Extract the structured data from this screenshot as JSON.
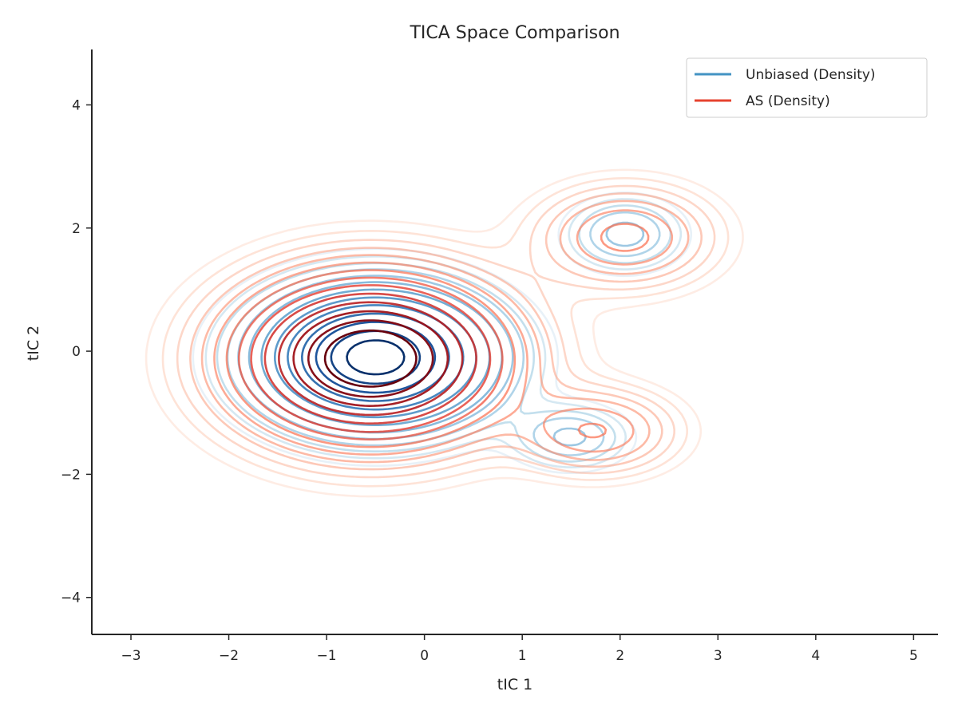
{
  "chart_data": {
    "type": "contour",
    "title": "TICA Space Comparison",
    "xlabel": "tIC 1",
    "ylabel": "tIC 2",
    "xlim": [
      -3.4,
      5.25
    ],
    "ylim": [
      -4.6,
      4.9
    ],
    "xticks": [
      -3,
      -2,
      -1,
      0,
      1,
      2,
      3,
      4,
      5
    ],
    "yticks": [
      -4,
      -2,
      0,
      2,
      4
    ],
    "xtick_labels": [
      "−3",
      "−2",
      "−1",
      "0",
      "1",
      "2",
      "3",
      "4",
      "5"
    ],
    "ytick_labels": [
      "−4",
      "−2",
      "0",
      "2",
      "4"
    ],
    "grid": false,
    "legend_position": "top-right",
    "series": [
      {
        "name": "Unbiased (Density)",
        "legend_color": "#4393c3",
        "colormap": "Blues",
        "modes": [
          {
            "center": [
              -0.5,
              -0.1
            ],
            "sx": 0.72,
            "sy": 0.68,
            "weight": 1.0
          },
          {
            "center": [
              2.05,
              1.9
            ],
            "sx": 0.38,
            "sy": 0.38,
            "weight": 0.17
          },
          {
            "center": [
              1.5,
              -1.4
            ],
            "sx": 0.38,
            "sy": 0.33,
            "weight": 0.16
          }
        ],
        "levels": [
          0.035,
          0.055,
          0.08,
          0.11,
          0.15,
          0.2,
          0.27,
          0.36,
          0.46,
          0.58,
          0.7,
          0.82,
          0.92
        ]
      },
      {
        "name": "AS (Density)",
        "legend_color": "#e6432f",
        "colormap": "Reds",
        "modes": [
          {
            "center": [
              -0.55,
              -0.12
            ],
            "sx": 0.82,
            "sy": 0.8,
            "weight": 1.0
          },
          {
            "center": [
              2.05,
              1.85
            ],
            "sx": 0.55,
            "sy": 0.5,
            "weight": 0.22
          },
          {
            "center": [
              1.75,
              -1.3
            ],
            "sx": 0.5,
            "sy": 0.42,
            "weight": 0.2
          }
        ],
        "levels": [
          0.02,
          0.035,
          0.055,
          0.08,
          0.11,
          0.15,
          0.2,
          0.26,
          0.33,
          0.42,
          0.52,
          0.63,
          0.74,
          0.85
        ]
      }
    ]
  }
}
